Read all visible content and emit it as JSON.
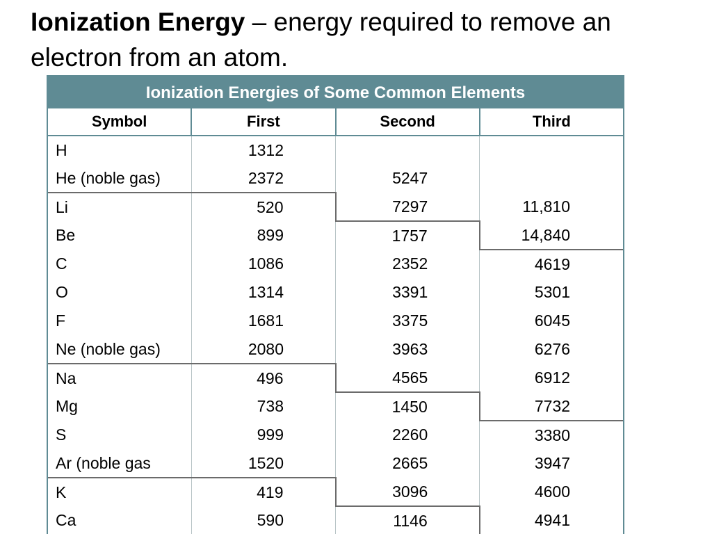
{
  "heading": {
    "term": "Ionization Energy",
    "definition": " – energy required to remove an electron from an atom."
  },
  "table": {
    "caption": "Ionization Energies of Some Common Elements",
    "columns": [
      "Symbol",
      "First",
      "Second",
      "Third"
    ],
    "rows": [
      {
        "symbol": "H",
        "first": "1312",
        "second": "",
        "third": ""
      },
      {
        "symbol": "He (noble gas)",
        "first": "2372",
        "second": "5247",
        "third": ""
      },
      {
        "symbol": "Li",
        "first": "520",
        "second": "7297",
        "third": "11,810"
      },
      {
        "symbol": "Be",
        "first": "899",
        "second": "1757",
        "third": "14,840"
      },
      {
        "symbol": "C",
        "first": "1086",
        "second": "2352",
        "third": "4619"
      },
      {
        "symbol": "O",
        "first": "1314",
        "second": "3391",
        "third": "5301"
      },
      {
        "symbol": "F",
        "first": "1681",
        "second": "3375",
        "third": "6045"
      },
      {
        "symbol": "Ne (noble gas)",
        "first": "2080",
        "second": "3963",
        "third": "6276"
      },
      {
        "symbol": "Na",
        "first": "496",
        "second": "4565",
        "third": "6912"
      },
      {
        "symbol": "Mg",
        "first": "738",
        "second": "1450",
        "third": "7732"
      },
      {
        "symbol": "S",
        "first": "999",
        "second": "2260",
        "third": "3380"
      },
      {
        "symbol": "Ar (noble gas",
        "first": "1520",
        "second": "2665",
        "third": "3947"
      },
      {
        "symbol": "K",
        "first": "419",
        "second": "3096",
        "third": "4600"
      },
      {
        "symbol": "Ca",
        "first": "590",
        "second": "1146",
        "third": "4941"
      }
    ]
  },
  "colors": {
    "caption_background": "#5f8b94",
    "table_border": "#5f8b94",
    "separator": "#6b6b6b"
  }
}
